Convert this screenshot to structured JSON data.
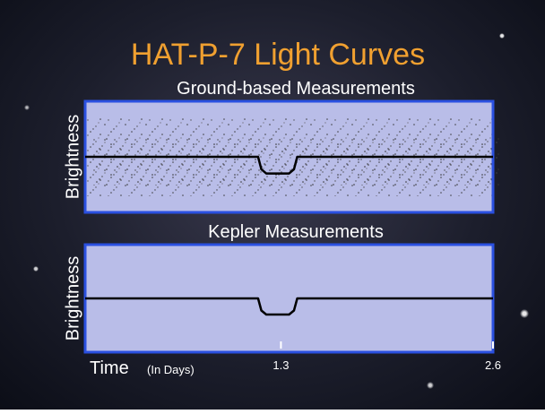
{
  "title": "HAT-P-7 Light Curves",
  "chart_data": [
    {
      "type": "line",
      "title": "Ground-based Measurements",
      "ylabel": "Brightness",
      "x": [
        0.1,
        1.16,
        1.18,
        1.21,
        1.35,
        1.38,
        1.4,
        2.6
      ],
      "series": [
        {
          "color": "#000000",
          "values": [
            1,
            1,
            0.9955,
            0.994,
            0.994,
            0.9955,
            1,
            1
          ]
        }
      ],
      "xlim": [
        0.1,
        2.6
      ],
      "ylim": [
        0.98,
        1.02
      ]
    },
    {
      "type": "line",
      "title": "Kepler Measurements",
      "ylabel": "Brightness",
      "xlabel": "Time",
      "xlabel_unit": "(In Days)",
      "x": [
        0.1,
        1.16,
        1.18,
        1.21,
        1.35,
        1.38,
        1.4,
        2.6
      ],
      "series": [
        {
          "color": "#000000",
          "values": [
            1,
            1,
            0.9955,
            0.994,
            0.994,
            0.9955,
            1,
            1
          ]
        }
      ],
      "xlim": [
        0.1,
        2.6
      ],
      "ylim": [
        0.98,
        1.02
      ],
      "xticks": [
        1.3,
        2.6
      ]
    }
  ]
}
